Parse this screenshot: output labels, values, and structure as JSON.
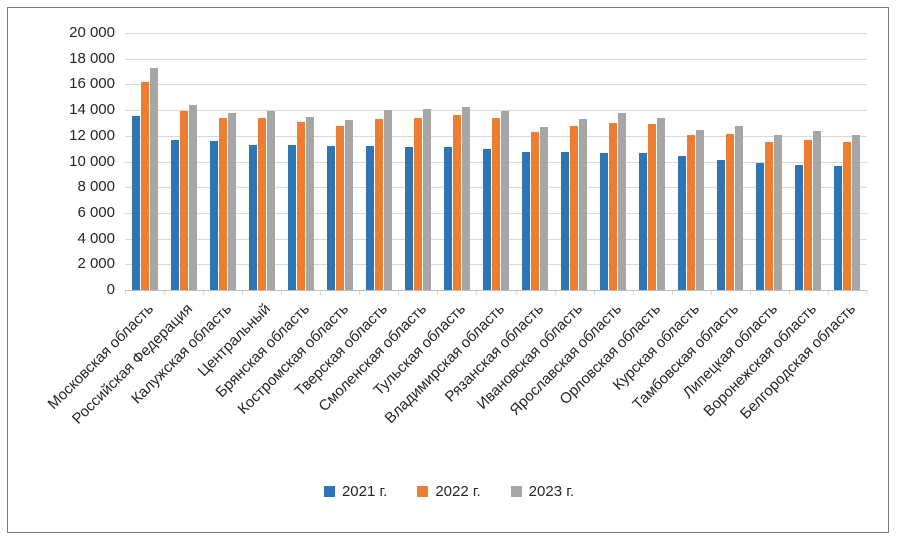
{
  "chart_data": {
    "type": "bar",
    "title": "",
    "xlabel": "",
    "ylabel": "",
    "categories": [
      "Московская область",
      "Российская Федерация",
      "Калужская область",
      "Центральный",
      "Брянская область",
      "Костромская область",
      "Тверская область",
      "Смоленская область",
      "Тульская область",
      "Владимирская область",
      "Рязанская область",
      "Ивановская область",
      "Ярославская область",
      "Орловская область",
      "Курская область",
      "Тамбовская область",
      "Липецкая область",
      "Воронежская область",
      "Белгородская область"
    ],
    "series": [
      {
        "name": "2021 г.",
        "color": "#2E75B6",
        "values": [
          13550,
          11650,
          11600,
          11300,
          11250,
          11200,
          11200,
          11150,
          11100,
          11000,
          10750,
          10750,
          10700,
          10700,
          10400,
          10150,
          9900,
          9700,
          9650
        ]
      },
      {
        "name": "2022 г.",
        "color": "#ED7D31",
        "values": [
          16150,
          13900,
          13350,
          13400,
          13050,
          12800,
          13300,
          13350,
          13600,
          13400,
          12300,
          12800,
          13000,
          12900,
          12050,
          12150,
          11500,
          11700,
          11550
        ]
      },
      {
        "name": "2023 г.",
        "color": "#A6A6A6",
        "values": [
          17250,
          14400,
          13800,
          13900,
          13450,
          13200,
          14000,
          14100,
          14250,
          13950,
          12700,
          13300,
          13800,
          13350,
          12450,
          12800,
          12050,
          12350,
          12050
        ]
      }
    ],
    "ylim": [
      0,
      20000
    ],
    "ytick_step": 2000,
    "ytick_labels": [
      "0",
      "2 000",
      "4 000",
      "6 000",
      "8 000",
      "10 000",
      "12 000",
      "14 000",
      "16 000",
      "18 000",
      "20 000"
    ],
    "grid": true,
    "legend_position": "bottom"
  },
  "colors": {
    "gridline": "#D9D9D9",
    "axis_line": "#BFBFBF",
    "text": "#262626",
    "frame_border": "#7F7F7F",
    "background": "#FFFFFF"
  }
}
